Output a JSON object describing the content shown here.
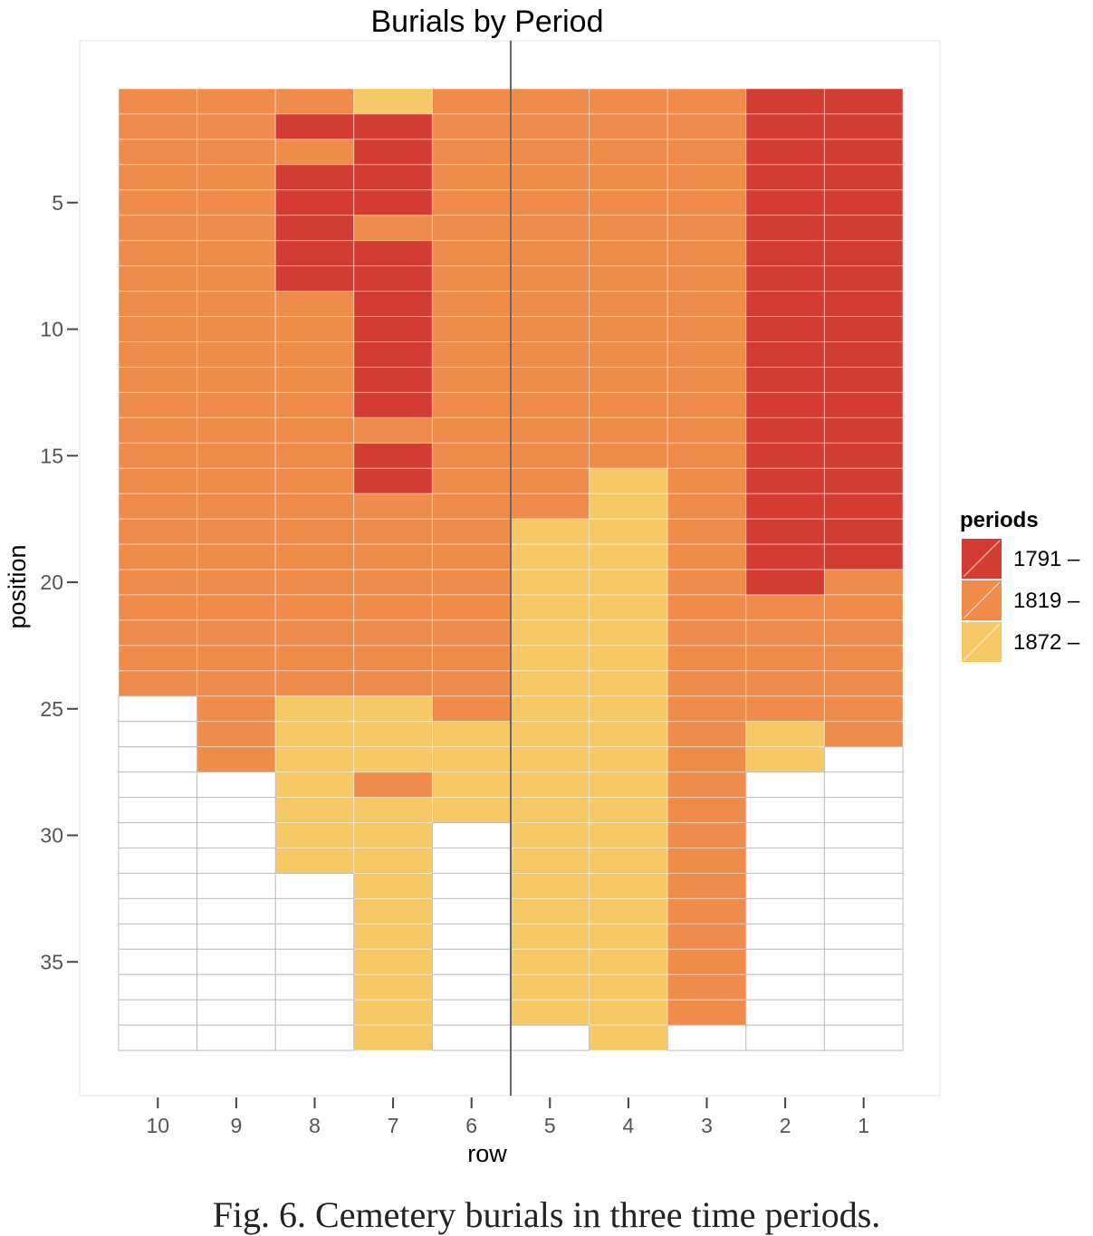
{
  "chart_data": {
    "type": "heatmap",
    "title": "Burials by Period",
    "xlabel": "row",
    "ylabel": "position",
    "x_categories": [
      "10",
      "9",
      "8",
      "7",
      "6",
      "5",
      "4",
      "3",
      "2",
      "1"
    ],
    "y_ticks": [
      5,
      10,
      15,
      20,
      25,
      30,
      35
    ],
    "y_range": [
      1,
      38
    ],
    "y_reversed": true,
    "grid": true,
    "legend": {
      "title": "periods",
      "placement": "right",
      "entries": [
        {
          "label": "1791 –",
          "color": "#D33C32"
        },
        {
          "label": "1819 –",
          "color": "#EF8C4B"
        },
        {
          "label": "1872 –",
          "color": "#F6C866"
        }
      ]
    },
    "columns": [
      {
        "row": "10",
        "periods": [
          "1819 –",
          "1819 –",
          "1819 –",
          "1819 –",
          "1819 –",
          "1819 –",
          "1819 –",
          "1819 –",
          "1819 –",
          "1819 –",
          "1819 –",
          "1819 –",
          "1819 –",
          "1819 –",
          "1819 –",
          "1819 –",
          "1819 –",
          "1819 –",
          "1819 –",
          "1819 –",
          "1819 –",
          "1819 –",
          "1819 –",
          "1819 –",
          null,
          null,
          null,
          null,
          null,
          null,
          null,
          null,
          null,
          null,
          null,
          null,
          null,
          null
        ]
      },
      {
        "row": "9",
        "periods": [
          "1819 –",
          "1819 –",
          "1819 –",
          "1819 –",
          "1819 –",
          "1819 –",
          "1819 –",
          "1819 –",
          "1819 –",
          "1819 –",
          "1819 –",
          "1819 –",
          "1819 –",
          "1819 –",
          "1819 –",
          "1819 –",
          "1819 –",
          "1819 –",
          "1819 –",
          "1819 –",
          "1819 –",
          "1819 –",
          "1819 –",
          "1819 –",
          "1819 –",
          "1819 –",
          "1819 –",
          null,
          null,
          null,
          null,
          null,
          null,
          null,
          null,
          null,
          null,
          null
        ]
      },
      {
        "row": "8",
        "periods": [
          "1819 –",
          "1791 –",
          "1819 –",
          "1791 –",
          "1791 –",
          "1791 –",
          "1791 –",
          "1791 –",
          "1819 –",
          "1819 –",
          "1819 –",
          "1819 –",
          "1819 –",
          "1819 –",
          "1819 –",
          "1819 –",
          "1819 –",
          "1819 –",
          "1819 –",
          "1819 –",
          "1819 –",
          "1819 –",
          "1819 –",
          "1819 –",
          "1872 –",
          "1872 –",
          "1872 –",
          "1872 –",
          "1872 –",
          "1872 –",
          "1872 –",
          null,
          null,
          null,
          null,
          null,
          null,
          null
        ]
      },
      {
        "row": "7",
        "periods": [
          "1872 –",
          "1791 –",
          "1791 –",
          "1791 –",
          "1791 –",
          "1819 –",
          "1791 –",
          "1791 –",
          "1791 –",
          "1791 –",
          "1791 –",
          "1791 –",
          "1791 –",
          "1819 –",
          "1791 –",
          "1791 –",
          "1819 –",
          "1819 –",
          "1819 –",
          "1819 –",
          "1819 –",
          "1819 –",
          "1819 –",
          "1819 –",
          "1872 –",
          "1872 –",
          "1872 –",
          "1819 –",
          "1872 –",
          "1872 –",
          "1872 –",
          "1872 –",
          "1872 –",
          "1872 –",
          "1872 –",
          "1872 –",
          "1872 –",
          "1872 –"
        ]
      },
      {
        "row": "6",
        "periods": [
          "1819 –",
          "1819 –",
          "1819 –",
          "1819 –",
          "1819 –",
          "1819 –",
          "1819 –",
          "1819 –",
          "1819 –",
          "1819 –",
          "1819 –",
          "1819 –",
          "1819 –",
          "1819 –",
          "1819 –",
          "1819 –",
          "1819 –",
          "1819 –",
          "1819 –",
          "1819 –",
          "1819 –",
          "1819 –",
          "1819 –",
          "1819 –",
          "1819 –",
          "1872 –",
          "1872 –",
          "1872 –",
          "1872 –",
          null,
          null,
          null,
          null,
          null,
          null,
          null,
          null,
          null
        ]
      },
      {
        "row": "5",
        "periods": [
          "1819 –",
          "1819 –",
          "1819 –",
          "1819 –",
          "1819 –",
          "1819 –",
          "1819 –",
          "1819 –",
          "1819 –",
          "1819 –",
          "1819 –",
          "1819 –",
          "1819 –",
          "1819 –",
          "1819 –",
          "1819 –",
          "1819 –",
          "1872 –",
          "1872 –",
          "1872 –",
          "1872 –",
          "1872 –",
          "1872 –",
          "1872 –",
          "1872 –",
          "1872 –",
          "1872 –",
          "1872 –",
          "1872 –",
          "1872 –",
          "1872 –",
          "1872 –",
          "1872 –",
          "1872 –",
          "1872 –",
          "1872 –",
          "1872 –",
          null
        ]
      },
      {
        "row": "4",
        "periods": [
          "1819 –",
          "1819 –",
          "1819 –",
          "1819 –",
          "1819 –",
          "1819 –",
          "1819 –",
          "1819 –",
          "1819 –",
          "1819 –",
          "1819 –",
          "1819 –",
          "1819 –",
          "1819 –",
          "1819 –",
          "1872 –",
          "1872 –",
          "1872 –",
          "1872 –",
          "1872 –",
          "1872 –",
          "1872 –",
          "1872 –",
          "1872 –",
          "1872 –",
          "1872 –",
          "1872 –",
          "1872 –",
          "1872 –",
          "1872 –",
          "1872 –",
          "1872 –",
          "1872 –",
          "1872 –",
          "1872 –",
          "1872 –",
          "1872 –",
          "1872 –"
        ]
      },
      {
        "row": "3",
        "periods": [
          "1819 –",
          "1819 –",
          "1819 –",
          "1819 –",
          "1819 –",
          "1819 –",
          "1819 –",
          "1819 –",
          "1819 –",
          "1819 –",
          "1819 –",
          "1819 –",
          "1819 –",
          "1819 –",
          "1819 –",
          "1819 –",
          "1819 –",
          "1819 –",
          "1819 –",
          "1819 –",
          "1819 –",
          "1819 –",
          "1819 –",
          "1819 –",
          "1819 –",
          "1819 –",
          "1819 –",
          "1819 –",
          "1819 –",
          "1819 –",
          "1819 –",
          "1819 –",
          "1819 –",
          "1819 –",
          "1819 –",
          "1819 –",
          "1819 –",
          null
        ]
      },
      {
        "row": "2",
        "periods": [
          "1791 –",
          "1791 –",
          "1791 –",
          "1791 –",
          "1791 –",
          "1791 –",
          "1791 –",
          "1791 –",
          "1791 –",
          "1791 –",
          "1791 –",
          "1791 –",
          "1791 –",
          "1791 –",
          "1791 –",
          "1791 –",
          "1791 –",
          "1791 –",
          "1791 –",
          "1791 –",
          "1819 –",
          "1819 –",
          "1819 –",
          "1819 –",
          "1819 –",
          "1872 –",
          "1872 –",
          null,
          null,
          null,
          null,
          null,
          null,
          null,
          null,
          null,
          null,
          null
        ]
      },
      {
        "row": "1",
        "periods": [
          "1791 –",
          "1791 –",
          "1791 –",
          "1791 –",
          "1791 –",
          "1791 –",
          "1791 –",
          "1791 –",
          "1791 –",
          "1791 –",
          "1791 –",
          "1791 –",
          "1791 –",
          "1791 –",
          "1791 –",
          "1791 –",
          "1791 –",
          "1791 –",
          "1791 –",
          "1819 –",
          "1819 –",
          "1819 –",
          "1819 –",
          "1819 –",
          "1819 –",
          "1819 –",
          null,
          null,
          null,
          null,
          null,
          null,
          null,
          null,
          null,
          null,
          null,
          null
        ]
      }
    ],
    "reference_line": {
      "between": [
        "6",
        "5"
      ]
    }
  },
  "caption": "Fig. 6. Cemetery burials in three time periods."
}
